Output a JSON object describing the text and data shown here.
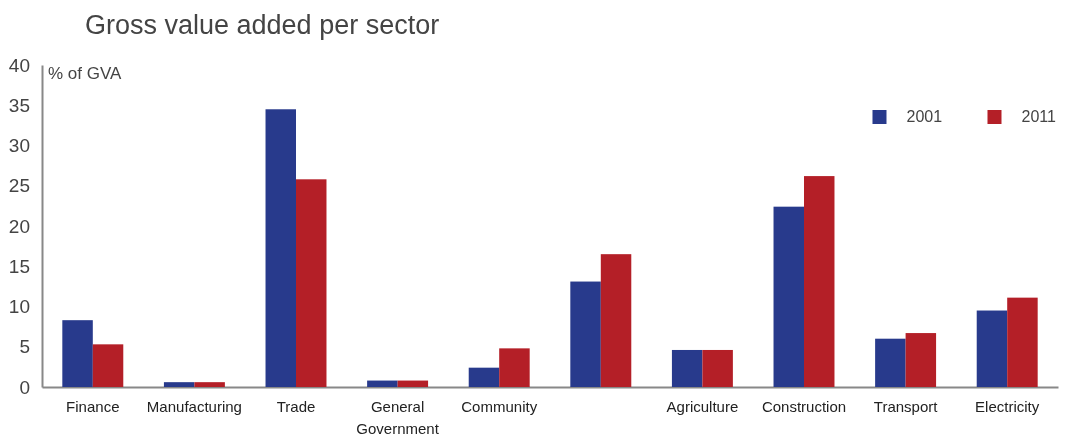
{
  "chart_data": {
    "type": "bar",
    "title": "Gross value added per sector",
    "ylabel": "% of GVA",
    "categories": [
      "Finance",
      "Manufacturing",
      "Trade",
      "General Government",
      "Community",
      null,
      "Agriculture",
      "Construction",
      "Transport",
      "Electricity"
    ],
    "series": [
      {
        "name": "2001",
        "color": "#283a8c",
        "values": [
          8.3,
          0.6,
          34.5,
          0.8,
          2.4,
          13.1,
          4.6,
          22.4,
          6.0,
          9.5
        ]
      },
      {
        "name": "2011",
        "color": "#b41f27",
        "values": [
          5.3,
          0.6,
          25.8,
          0.8,
          4.8,
          16.5,
          4.6,
          26.2,
          6.7,
          11.1
        ]
      }
    ],
    "ylim": [
      0,
      40
    ],
    "yticks": [
      0,
      5,
      10,
      15,
      20,
      25,
      30,
      35,
      40
    ],
    "grid": false,
    "legend": "top right"
  }
}
